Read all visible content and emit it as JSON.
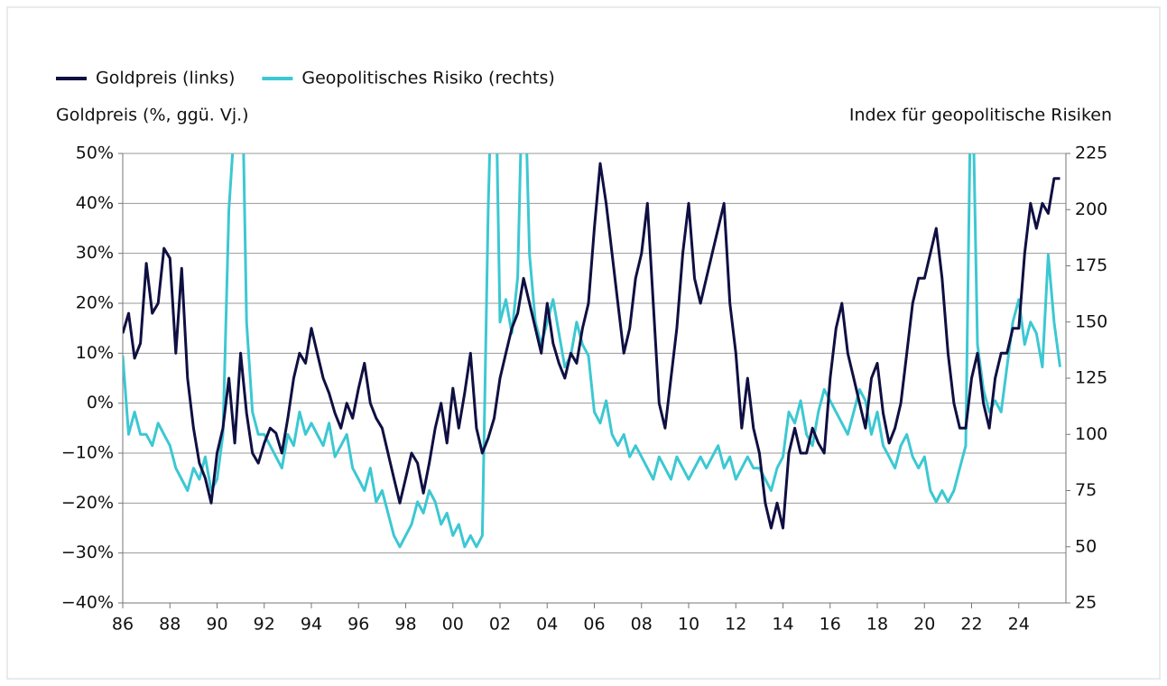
{
  "chart_data": {
    "type": "line",
    "legend": "top-left",
    "grid": true,
    "y_label": "Goldpreis (%, ggü. Vj.)",
    "y2_label": "Index für geopolitische Risiken",
    "xlim": [
      1986,
      2026
    ],
    "xticks": [
      {
        "value": 1986,
        "label": "86"
      },
      {
        "value": 1988,
        "label": "88"
      },
      {
        "value": 1990,
        "label": "90"
      },
      {
        "value": 1992,
        "label": "92"
      },
      {
        "value": 1994,
        "label": "94"
      },
      {
        "value": 1996,
        "label": "96"
      },
      {
        "value": 1998,
        "label": "98"
      },
      {
        "value": 2000,
        "label": "00"
      },
      {
        "value": 2002,
        "label": "02"
      },
      {
        "value": 2004,
        "label": "04"
      },
      {
        "value": 2006,
        "label": "06"
      },
      {
        "value": 2008,
        "label": "08"
      },
      {
        "value": 2010,
        "label": "10"
      },
      {
        "value": 2012,
        "label": "12"
      },
      {
        "value": 2014,
        "label": "14"
      },
      {
        "value": 2016,
        "label": "16"
      },
      {
        "value": 2018,
        "label": "18"
      },
      {
        "value": 2020,
        "label": "20"
      },
      {
        "value": 2022,
        "label": "22"
      },
      {
        "value": 2024,
        "label": "24"
      }
    ],
    "ylim": [
      -40,
      50
    ],
    "yticks": [
      {
        "value": -40,
        "label": "−40%"
      },
      {
        "value": -30,
        "label": "−30%"
      },
      {
        "value": -20,
        "label": "−20%"
      },
      {
        "value": -10,
        "label": "−10%"
      },
      {
        "value": 0,
        "label": "0%"
      },
      {
        "value": 10,
        "label": "10%"
      },
      {
        "value": 20,
        "label": "20%"
      },
      {
        "value": 30,
        "label": "30%"
      },
      {
        "value": 40,
        "label": "40%"
      },
      {
        "value": 50,
        "label": "50%"
      }
    ],
    "y2lim": [
      25,
      225
    ],
    "y2ticks": [
      25,
      50,
      75,
      100,
      125,
      150,
      175,
      200,
      225
    ],
    "x": [
      1986,
      1986.25,
      1986.5,
      1986.75,
      1987,
      1987.25,
      1987.5,
      1987.75,
      1988,
      1988.25,
      1988.5,
      1988.75,
      1989,
      1989.25,
      1989.5,
      1989.75,
      1990,
      1990.25,
      1990.5,
      1990.75,
      1991,
      1991.25,
      1991.5,
      1991.75,
      1992,
      1992.25,
      1992.5,
      1992.75,
      1993,
      1993.25,
      1993.5,
      1993.75,
      1994,
      1994.25,
      1994.5,
      1994.75,
      1995,
      1995.25,
      1995.5,
      1995.75,
      1996,
      1996.25,
      1996.5,
      1996.75,
      1997,
      1997.25,
      1997.5,
      1997.75,
      1998,
      1998.25,
      1998.5,
      1998.75,
      1999,
      1999.25,
      1999.5,
      1999.75,
      2000,
      2000.25,
      2000.5,
      2000.75,
      2001,
      2001.25,
      2001.5,
      2001.75,
      2002,
      2002.25,
      2002.5,
      2002.75,
      2003,
      2003.25,
      2003.5,
      2003.75,
      2004,
      2004.25,
      2004.5,
      2004.75,
      2005,
      2005.25,
      2005.5,
      2005.75,
      2006,
      2006.25,
      2006.5,
      2006.75,
      2007,
      2007.25,
      2007.5,
      2007.75,
      2008,
      2008.25,
      2008.5,
      2008.75,
      2009,
      2009.25,
      2009.5,
      2009.75,
      2010,
      2010.25,
      2010.5,
      2010.75,
      2011,
      2011.25,
      2011.5,
      2011.75,
      2012,
      2012.25,
      2012.5,
      2012.75,
      2013,
      2013.25,
      2013.5,
      2013.75,
      2014,
      2014.25,
      2014.5,
      2014.75,
      2015,
      2015.25,
      2015.5,
      2015.75,
      2016,
      2016.25,
      2016.5,
      2016.75,
      2017,
      2017.25,
      2017.5,
      2017.75,
      2018,
      2018.25,
      2018.5,
      2018.75,
      2019,
      2019.25,
      2019.5,
      2019.75,
      2020,
      2020.25,
      2020.5,
      2020.75,
      2021,
      2021.25,
      2021.5,
      2021.75,
      2022,
      2022.25,
      2022.5,
      2022.75,
      2023,
      2023.25,
      2023.5,
      2023.75,
      2024,
      2024.25,
      2024.5,
      2024.75,
      2025,
      2025.25,
      2025.5,
      2025.75
    ],
    "series": [
      {
        "name": "Geopolitisches Risiko (rechts)",
        "color": "#3cc8d2",
        "axis": "y2",
        "values": [
          135,
          100,
          110,
          100,
          100,
          95,
          105,
          100,
          95,
          85,
          80,
          75,
          85,
          80,
          90,
          75,
          80,
          100,
          200,
          240,
          300,
          150,
          110,
          100,
          100,
          95,
          90,
          85,
          100,
          95,
          110,
          100,
          105,
          100,
          95,
          105,
          90,
          95,
          100,
          85,
          80,
          75,
          85,
          70,
          75,
          65,
          55,
          50,
          55,
          60,
          70,
          65,
          75,
          70,
          60,
          65,
          55,
          60,
          50,
          55,
          50,
          55,
          200,
          300,
          150,
          160,
          145,
          170,
          280,
          180,
          150,
          140,
          150,
          160,
          145,
          130,
          135,
          150,
          140,
          135,
          110,
          105,
          115,
          100,
          95,
          100,
          90,
          95,
          90,
          85,
          80,
          90,
          85,
          80,
          90,
          85,
          80,
          85,
          90,
          85,
          90,
          95,
          85,
          90,
          80,
          85,
          90,
          85,
          85,
          80,
          75,
          85,
          90,
          110,
          105,
          115,
          100,
          95,
          110,
          120,
          115,
          110,
          105,
          100,
          110,
          120,
          115,
          100,
          110,
          95,
          90,
          85,
          95,
          100,
          90,
          85,
          90,
          75,
          70,
          75,
          70,
          75,
          85,
          95,
          280,
          140,
          120,
          110,
          115,
          110,
          130,
          150,
          160,
          140,
          150,
          145,
          130,
          180,
          150,
          130
        ]
      },
      {
        "name": "Goldpreis (links)",
        "color": "#0f0f42",
        "values": [
          14,
          18,
          9,
          12,
          28,
          18,
          20,
          31,
          29,
          10,
          27,
          5,
          -5,
          -12,
          -15,
          -20,
          -10,
          -5,
          5,
          -8,
          10,
          -2,
          -10,
          -12,
          -8,
          -5,
          -6,
          -10,
          -3,
          5,
          10,
          8,
          15,
          10,
          5,
          2,
          -2,
          -5,
          0,
          -3,
          3,
          8,
          0,
          -3,
          -5,
          -10,
          -15,
          -20,
          -15,
          -10,
          -12,
          -18,
          -12,
          -5,
          0,
          -8,
          3,
          -5,
          2,
          10,
          -5,
          -10,
          -7,
          -3,
          5,
          10,
          15,
          18,
          25,
          20,
          15,
          10,
          20,
          12,
          8,
          5,
          10,
          8,
          15,
          20,
          35,
          48,
          40,
          30,
          20,
          10,
          15,
          25,
          30,
          40,
          20,
          0,
          -5,
          5,
          15,
          30,
          40,
          25,
          20,
          25,
          30,
          35,
          40,
          20,
          10,
          -5,
          5,
          -5,
          -10,
          -20,
          -25,
          -20,
          -25,
          -10,
          -5,
          -10,
          -10,
          -5,
          -8,
          -10,
          5,
          15,
          20,
          10,
          5,
          0,
          -5,
          5,
          8,
          -2,
          -8,
          -5,
          0,
          10,
          20,
          25,
          25,
          30,
          35,
          25,
          10,
          0,
          -5,
          -5,
          5,
          10,
          0,
          -5,
          5,
          10,
          10,
          15,
          15,
          30,
          40,
          35,
          40,
          38,
          45,
          45
        ]
      }
    ]
  }
}
